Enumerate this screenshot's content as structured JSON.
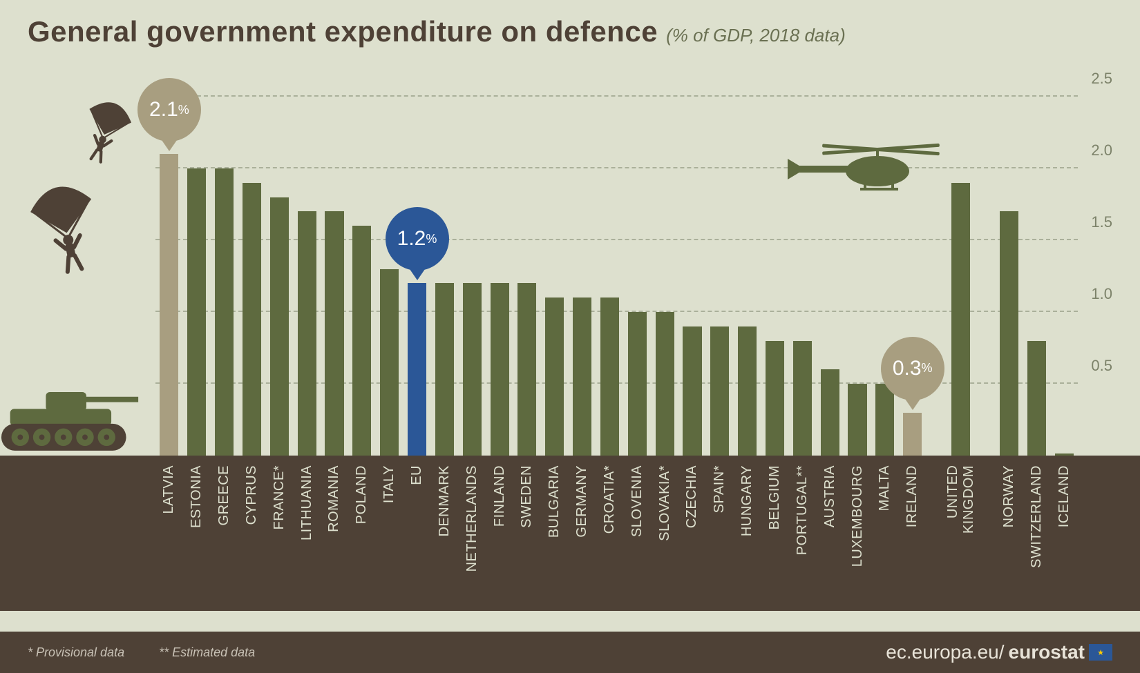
{
  "title": {
    "main": "General government expenditure on defence",
    "sub": "(% of GDP, 2018 data)"
  },
  "chart": {
    "type": "bar",
    "ylim": [
      0,
      2.5
    ],
    "ytick_step": 0.5,
    "yticks": [
      "0.5",
      "1.0",
      "1.5",
      "2.0",
      "2.5"
    ],
    "background_color": "#dde0ce",
    "ground_color": "#4e4136",
    "grid_color": "#aab09a",
    "axis_font_color": "#7c8269",
    "label_font_color": "#dde0ce",
    "label_fontsize": 20,
    "bar_width_ratio": 0.68,
    "groups": [
      {
        "items": [
          {
            "label": "LATVIA",
            "value": 2.1,
            "color": "#a89e80",
            "bubble": {
              "text": "2.1",
              "suffix": "%",
              "fill": "#a89e80"
            }
          },
          {
            "label": "ESTONIA",
            "value": 2.0,
            "color": "#5e6a3f"
          },
          {
            "label": "GREECE",
            "value": 2.0,
            "color": "#5e6a3f"
          },
          {
            "label": "CYPRUS",
            "value": 1.9,
            "color": "#5e6a3f"
          },
          {
            "label": "FRANCE*",
            "value": 1.8,
            "color": "#5e6a3f"
          },
          {
            "label": "LITHUANIA",
            "value": 1.7,
            "color": "#5e6a3f"
          },
          {
            "label": "ROMANIA",
            "value": 1.7,
            "color": "#5e6a3f"
          },
          {
            "label": "POLAND",
            "value": 1.6,
            "color": "#5e6a3f"
          },
          {
            "label": "ITALY",
            "value": 1.3,
            "color": "#5e6a3f"
          },
          {
            "label": "EU",
            "value": 1.2,
            "color": "#2b5797",
            "bubble": {
              "text": "1.2",
              "suffix": "%",
              "fill": "#2b5797"
            }
          },
          {
            "label": "DENMARK",
            "value": 1.2,
            "color": "#5e6a3f"
          },
          {
            "label": "NETHERLANDS",
            "value": 1.2,
            "color": "#5e6a3f"
          },
          {
            "label": "FINLAND",
            "value": 1.2,
            "color": "#5e6a3f"
          },
          {
            "label": "SWEDEN",
            "value": 1.2,
            "color": "#5e6a3f"
          },
          {
            "label": "BULGARIA",
            "value": 1.1,
            "color": "#5e6a3f"
          },
          {
            "label": "GERMANY",
            "value": 1.1,
            "color": "#5e6a3f"
          },
          {
            "label": "CROATIA*",
            "value": 1.1,
            "color": "#5e6a3f"
          },
          {
            "label": "SLOVENIA",
            "value": 1.0,
            "color": "#5e6a3f"
          },
          {
            "label": "SLOVAKIA*",
            "value": 1.0,
            "color": "#5e6a3f"
          },
          {
            "label": "CZECHIA",
            "value": 0.9,
            "color": "#5e6a3f"
          },
          {
            "label": "SPAIN*",
            "value": 0.9,
            "color": "#5e6a3f"
          },
          {
            "label": "HUNGARY",
            "value": 0.9,
            "color": "#5e6a3f"
          },
          {
            "label": "BELGIUM",
            "value": 0.8,
            "color": "#5e6a3f"
          },
          {
            "label": "PORTUGAL**",
            "value": 0.8,
            "color": "#5e6a3f"
          },
          {
            "label": "AUSTRIA",
            "value": 0.6,
            "color": "#5e6a3f"
          },
          {
            "label": "LUXEMBOURG",
            "value": 0.5,
            "color": "#5e6a3f"
          },
          {
            "label": "MALTA",
            "value": 0.5,
            "color": "#5e6a3f"
          },
          {
            "label": "IRELAND",
            "value": 0.3,
            "color": "#a89e80",
            "bubble": {
              "text": "0.3",
              "suffix": "%",
              "fill": "#a89e80"
            }
          }
        ]
      },
      {
        "gap_before": 30,
        "items": [
          {
            "label": "UNITED KINGDOM",
            "value": 1.9,
            "color": "#5e6a3f"
          }
        ]
      },
      {
        "gap_before": 30,
        "items": [
          {
            "label": "NORWAY",
            "value": 1.7,
            "color": "#5e6a3f"
          },
          {
            "label": "SWITZERLAND",
            "value": 0.8,
            "color": "#5e6a3f"
          },
          {
            "label": "ICELAND",
            "value": 0.0,
            "color": "#5e6a3f"
          }
        ]
      }
    ]
  },
  "footnotes": {
    "provisional": "*   Provisional data",
    "estimated": "**  Estimated data"
  },
  "source": {
    "prefix": "ec.europa.eu/",
    "brand": "eurostat"
  },
  "decor": {
    "helicopter_color": "#5e6a3f",
    "parachute_color": "#4e4136",
    "tank_color": "#5e6a3f"
  }
}
